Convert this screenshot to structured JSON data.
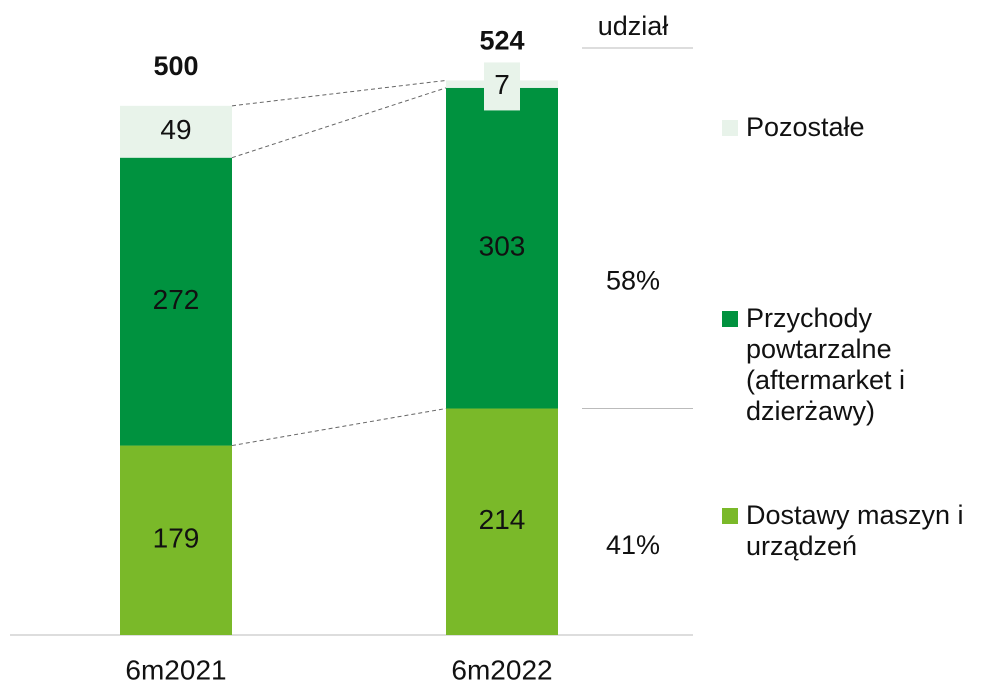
{
  "chart_data": {
    "type": "stacked_bar",
    "categories": [
      "6m2021",
      "6m2022"
    ],
    "series": [
      {
        "name": "Dostawy maszyn i urządzeń",
        "color": "#7ab929",
        "values": [
          179,
          214
        ]
      },
      {
        "name": "Przychody powtarzalne (aftermarket i dzierżawy)",
        "color": "#00923f",
        "values": [
          272,
          303
        ]
      },
      {
        "name": "Pozostałe",
        "color": "#e8f3ea",
        "values": [
          49,
          7
        ]
      }
    ],
    "totals": [
      500,
      524
    ],
    "ylim": [
      0,
      600
    ],
    "share_title": "udział",
    "shares": {
      "values": [
        58,
        41
      ],
      "value_labels": [
        "58%",
        "41%"
      ]
    }
  }
}
